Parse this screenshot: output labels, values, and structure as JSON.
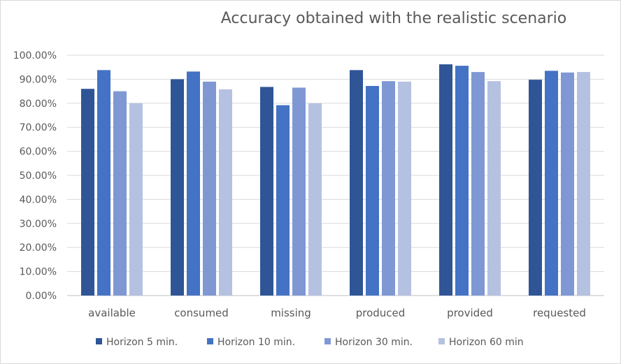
{
  "chart_data": {
    "type": "bar",
    "title": "Accuracy obtained with the realistic scenario",
    "xlabel": "",
    "ylabel": "",
    "ylim": [
      0,
      100
    ],
    "y_ticks": [
      "0.00%",
      "10.00%",
      "20.00%",
      "30.00%",
      "40.00%",
      "50.00%",
      "60.00%",
      "70.00%",
      "80.00%",
      "90.00%",
      "100.00%"
    ],
    "grid": true,
    "legend_position": "bottom",
    "categories": [
      "available",
      "consumed",
      "missing",
      "produced",
      "provided",
      "requested"
    ],
    "series": [
      {
        "name": "Horizon 5 min.",
        "color": "#2f5597",
        "values": [
          86.0,
          90.0,
          86.8,
          93.8,
          96.2,
          89.8
        ]
      },
      {
        "name": "Horizon 10 min.",
        "color": "#4472c4",
        "values": [
          93.8,
          93.2,
          79.2,
          87.2,
          95.6,
          93.5
        ]
      },
      {
        "name": "Horizon 30 min.",
        "color": "#7f98d4",
        "values": [
          85.0,
          89.0,
          86.5,
          89.2,
          93.0,
          92.8
        ]
      },
      {
        "name": "Horizon 60 min",
        "color": "#b4c1e1",
        "values": [
          80.0,
          85.8,
          80.0,
          89.0,
          89.2,
          93.0
        ]
      }
    ]
  }
}
